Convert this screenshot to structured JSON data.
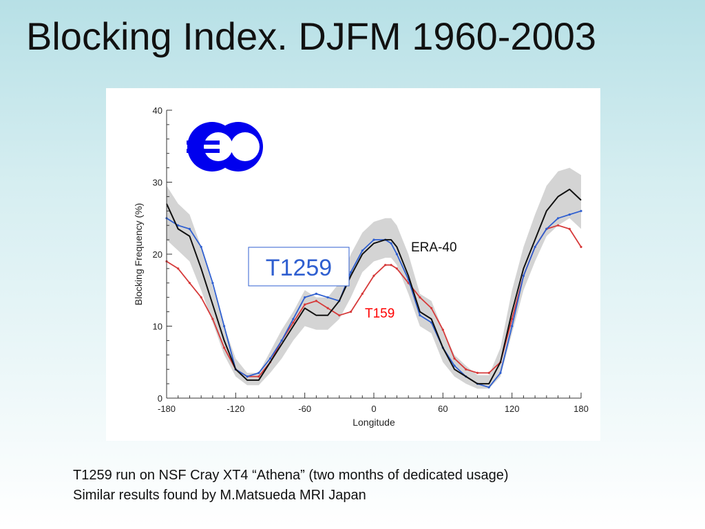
{
  "slide": {
    "title": "Blocking Index. DJFM 1960-2003",
    "caption_lines": [
      "T1259 run on NSF Cray XT4 “Athena” (two months of dedicated usage)",
      "Similar results found by M.Matsueda MRI Japan"
    ]
  },
  "colors": {
    "era40": "#111111",
    "t1259": "#2f5fd0",
    "t159": "#d63a3a",
    "spread": "#cfcfcf",
    "logo": "#0000ee",
    "t1259_box_border": "#2f5fd0",
    "t159_label": "#ff0000"
  },
  "chart_data": {
    "type": "line",
    "title": "",
    "xlabel": "Longitude",
    "ylabel": "Blocking Frequency (%)",
    "xlim": [
      -180,
      180
    ],
    "ylim": [
      0,
      40
    ],
    "xticks": [
      "-180",
      "-120",
      "-60",
      "0",
      "60",
      "120",
      "180"
    ],
    "yticks": [
      "0",
      "10",
      "20",
      "30",
      "40"
    ],
    "grid": false,
    "annotations": {
      "t1259_box": "T1259",
      "era40_label": "ERA-40",
      "t159_label": "T159"
    },
    "x": [
      -180,
      -170,
      -160,
      -150,
      -140,
      -130,
      -120,
      -110,
      -100,
      -90,
      -80,
      -70,
      -60,
      -50,
      -40,
      -30,
      -20,
      -10,
      0,
      10,
      15,
      20,
      30,
      40,
      50,
      60,
      70,
      80,
      90,
      100,
      110,
      120,
      130,
      140,
      150,
      160,
      170,
      180
    ],
    "series": [
      {
        "name": "ERA-40",
        "key": "era40",
        "values": [
          27,
          23.5,
          22.5,
          18,
          13,
          8,
          4,
          2.5,
          2.5,
          5,
          7.5,
          10,
          12.5,
          11.5,
          11.5,
          13.5,
          17,
          20,
          21.5,
          22,
          22,
          21,
          17,
          12,
          11,
          7,
          4,
          3,
          2,
          2,
          5,
          12,
          18,
          22,
          26,
          28,
          29,
          27.5
        ]
      },
      {
        "name": "T1259",
        "key": "t1259",
        "values": [
          25,
          24,
          23.5,
          21,
          16,
          10,
          4,
          3,
          3.5,
          5.5,
          8,
          11,
          14,
          14.5,
          14,
          13.5,
          17.5,
          20.5,
          22,
          22,
          21.5,
          20,
          16.5,
          11.5,
          10.5,
          7,
          4.5,
          3,
          2,
          1.5,
          3.5,
          10,
          17,
          21,
          23.5,
          25,
          25.5,
          26
        ]
      },
      {
        "name": "T159",
        "key": "t159",
        "values": [
          19,
          18,
          16,
          14,
          11,
          7,
          4,
          3,
          3,
          5,
          8,
          10.5,
          13,
          13.5,
          12.5,
          11.5,
          12,
          14.5,
          17,
          18.5,
          18.5,
          18,
          16,
          14,
          12.5,
          9.5,
          5.5,
          4,
          3.5,
          3.5,
          5,
          11,
          17,
          21,
          23.5,
          24,
          23.5,
          21
        ]
      }
    ],
    "spread_band": {
      "lower": [
        22,
        20.5,
        19,
        15,
        10.5,
        6,
        3,
        1.8,
        1.8,
        3.5,
        5.5,
        8,
        10,
        9.5,
        9.5,
        11,
        14,
        17.5,
        19,
        19.5,
        19.5,
        18.5,
        14.5,
        10,
        9,
        5,
        3,
        2,
        1.3,
        1.3,
        3,
        9,
        15,
        19,
        22.5,
        24,
        25,
        23.5
      ],
      "upper": [
        29.5,
        27,
        25.5,
        21,
        15.5,
        10,
        5.5,
        3.5,
        3.5,
        6.5,
        9.5,
        12,
        15,
        14,
        14,
        16,
        20,
        23,
        24.5,
        25,
        25,
        24,
        20,
        14.5,
        13.5,
        9.5,
        6,
        4.5,
        3.2,
        3.2,
        7,
        15,
        21,
        25.5,
        29.5,
        31.5,
        32,
        31
      ]
    }
  }
}
